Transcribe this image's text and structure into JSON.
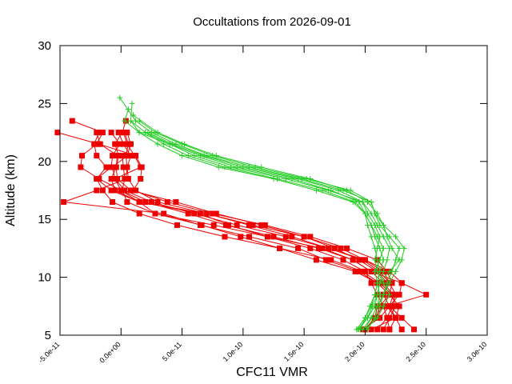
{
  "chart_data": {
    "type": "line",
    "title": "Occultations from 2026-09-01",
    "xlabel": "CFC11 VMR",
    "ylabel": "Altitude (km)",
    "xlim": [
      -5e-11,
      3e-10
    ],
    "ylim": [
      5,
      30
    ],
    "x_ticks": [
      -5e-11,
      0,
      5e-11,
      1e-10,
      1.5e-10,
      2e-10,
      2.5e-10,
      3e-10
    ],
    "x_tick_labels": [
      "-5.0e-11",
      "0.0e+00",
      "5.0e-11",
      "1.0e-10",
      "1.5e-10",
      "2.0e-10",
      "2.5e-10",
      "3.0e-10"
    ],
    "y_ticks": [
      5,
      10,
      15,
      20,
      25,
      30
    ],
    "y_tick_labels": [
      "5",
      "10",
      "15",
      "20",
      "25",
      "30"
    ],
    "grid": false,
    "legend": "none",
    "colors": {
      "red_series": "#ee0000",
      "green_series": "#22cc22"
    },
    "series": [
      {
        "color": "red",
        "marker": "square",
        "x": [
          2e-10,
          2.08e-10,
          2.15e-10,
          2.2e-10,
          2.1e-10,
          1.92e-10,
          1.6e-10,
          1.3e-10,
          9.8e-11,
          6.6e-11,
          2.8e-11,
          5e-12,
          1e-12,
          3e-12,
          2e-12,
          1e-12
        ],
        "y": [
          5.5,
          6.5,
          7.5,
          8.5,
          9.5,
          10.5,
          11.5,
          12.5,
          13.5,
          14.5,
          15.5,
          16.5,
          17.5,
          18.5,
          19.5,
          20.5
        ]
      },
      {
        "color": "red",
        "marker": "square",
        "x": [
          2.1e-10,
          2.18e-10,
          2.22e-10,
          2.25e-10,
          2.2e-10,
          2.12e-10,
          1.98e-10,
          1.7e-10,
          1.4e-10,
          1.05e-10,
          7e-11,
          3e-11,
          1.2e-11,
          6e-12,
          5e-12,
          4e-12,
          6e-12,
          3e-12
        ],
        "y": [
          5.5,
          6.5,
          7.5,
          8.5,
          9.5,
          10.5,
          11.5,
          12.5,
          13.5,
          14.5,
          15.5,
          16.5,
          17.5,
          18.5,
          19.5,
          20.5,
          21.5,
          22.5
        ]
      },
      {
        "color": "red",
        "marker": "square",
        "x": [
          2.3e-10,
          2.25e-10,
          2.18e-10,
          2.5e-10,
          2.3e-10,
          2.2e-10,
          2e-10,
          1.8e-10,
          1.5e-10,
          1.15e-10,
          7.8e-11,
          4.5e-11,
          8e-12,
          -3e-12,
          -4e-12,
          -2e-12,
          -5e-12,
          1e-12,
          4e-12
        ],
        "y": [
          5.5,
          6.5,
          7.5,
          8.5,
          9.5,
          10.5,
          11.5,
          12.5,
          13.5,
          14.5,
          15.5,
          16.5,
          17.5,
          18.5,
          19.5,
          20.5,
          21.5,
          22.5,
          23.5
        ]
      },
      {
        "color": "red",
        "marker": "square",
        "x": [
          1.98e-10,
          2.12e-10,
          2.2e-10,
          2.23e-10,
          2.15e-10,
          2.05e-10,
          1.9e-10,
          1.62e-10,
          1.25e-10,
          8.6e-11,
          5.5e-11,
          2e-11,
          0,
          -1.8e-11,
          -3.3e-11,
          -3.2e-11,
          -2e-11,
          -1.5e-11,
          -4e-11
        ],
        "y": [
          5.5,
          6.5,
          7.5,
          8.5,
          9.5,
          10.5,
          11.5,
          12.5,
          13.5,
          14.5,
          15.5,
          16.5,
          17.5,
          18.5,
          19.5,
          20.5,
          21.5,
          22.5,
          23.5
        ]
      },
      {
        "color": "red",
        "marker": "square",
        "x": [
          2e-10,
          2.1e-10,
          2.12e-10,
          2.2e-10,
          2.22e-10,
          2.18e-10,
          2.1e-10,
          1.85e-10,
          1.55e-10,
          1.18e-10,
          7.5e-11,
          3.8e-11,
          1e-11,
          1.6e-11,
          1.7e-11,
          1.2e-11,
          -1.8e-11,
          -5.2e-11
        ],
        "y": [
          5.5,
          6.5,
          7.5,
          8.5,
          9.5,
          10.5,
          11.5,
          12.5,
          13.5,
          14.5,
          15.5,
          16.5,
          17.5,
          18.5,
          19.5,
          20.5,
          21.5,
          22.5
        ]
      },
      {
        "color": "red",
        "marker": "square",
        "x": [
          2e-10,
          2.08e-10,
          2.1e-10,
          2.15e-10,
          2.2e-10,
          2.15e-10,
          2e-10,
          1.7e-10,
          1.35e-10,
          9.5e-11,
          6e-11,
          2.5e-11,
          3e-12,
          -5e-12,
          -7e-12,
          5e-12,
          8e-12,
          5e-12
        ],
        "y": [
          5.5,
          6.5,
          7.5,
          8.5,
          9.5,
          10.5,
          11.5,
          12.5,
          13.5,
          14.5,
          15.5,
          16.5,
          17.5,
          18.5,
          19.5,
          20.5,
          21.5,
          22.5
        ]
      },
      {
        "color": "red",
        "marker": "square",
        "x": [
          2.15e-10,
          2.2e-10,
          2.25e-10,
          2.22e-10,
          2.12e-10,
          1.98e-10,
          1.72e-10,
          1.3e-10,
          8.5e-11,
          4.6e-11,
          1.5e-11,
          -7e-12,
          -1.5e-11,
          -2e-11,
          -1.2e-11,
          -2e-11,
          -2.2e-11,
          -1.8e-11
        ],
        "y": [
          5.5,
          6.5,
          7.5,
          8.5,
          9.5,
          10.5,
          11.5,
          12.5,
          13.5,
          14.5,
          15.5,
          16.5,
          17.5,
          18.5,
          19.5,
          20.5,
          21.5,
          22.5
        ]
      },
      {
        "color": "red",
        "marker": "square",
        "x": [
          2.2e-10,
          2.25e-10,
          2.28e-10,
          2.2e-10,
          2.1e-10,
          1.95e-10,
          1.68e-10,
          1.45e-10,
          1.05e-10,
          6.5e-11,
          3.5e-11,
          -4.7e-11,
          -2e-11,
          4e-12,
          5e-12,
          8e-12,
          2e-12,
          -2e-12
        ],
        "y": [
          5.5,
          6.5,
          7.5,
          8.5,
          9.5,
          10.5,
          11.5,
          12.5,
          13.5,
          14.5,
          15.5,
          16.5,
          17.5,
          18.5,
          19.5,
          20.5,
          21.5,
          22.5
        ]
      },
      {
        "color": "red",
        "marker": "square",
        "x": [
          2.4e-10,
          2.3e-10,
          2.2e-10,
          2.28e-10,
          2.3e-10,
          2.05e-10,
          1.9e-10,
          1.65e-10,
          1.2e-10,
          7.6e-11,
          2.8e-11,
          1.5e-11,
          0,
          -5e-12,
          1.6e-11,
          1.1e-11,
          5e-12,
          2e-12
        ],
        "y": [
          5.5,
          6.5,
          7.5,
          8.5,
          9.5,
          10.5,
          11.5,
          12.5,
          13.5,
          14.5,
          15.5,
          16.5,
          17.5,
          18.5,
          19.5,
          20.5,
          21.5,
          22.5
        ]
      },
      {
        "color": "red",
        "marker": "square",
        "x": [
          2.2e-10,
          2.18e-10,
          2.15e-10,
          2.1e-10,
          2.05e-10,
          2e-10,
          1.82e-10,
          1.55e-10,
          1.2e-10,
          8.8e-11,
          6.5e-11,
          1.5e-11,
          -8e-12,
          -2e-11,
          -8e-12,
          -7e-12,
          -1e-12,
          -8e-12
        ],
        "y": [
          5.5,
          6.5,
          7.5,
          8.5,
          9.5,
          10.5,
          11.5,
          12.5,
          13.5,
          14.5,
          15.5,
          16.5,
          17.5,
          18.5,
          19.5,
          20.5,
          21.5,
          22.5
        ]
      },
      {
        "color": "red",
        "marker": "square",
        "x": [
          2.05e-10,
          2.25e-10,
          2.2e-10,
          2.15e-10,
          2.18e-10,
          2.1e-10,
          1.95e-10,
          1.75e-10,
          1.5e-10,
          1.08e-10,
          7e-11,
          1.5e-11,
          -5e-12,
          -8e-12,
          -4e-12,
          -3e-12,
          -1.7e-11,
          -2e-11
        ],
        "y": [
          5.5,
          6.5,
          7.5,
          8.5,
          9.5,
          10.5,
          11.5,
          12.5,
          13.5,
          14.5,
          15.5,
          16.5,
          17.5,
          18.5,
          19.5,
          20.5,
          21.5,
          22.5
        ]
      },
      {
        "color": "green",
        "marker": "plus",
        "x": [
          1.93e-10,
          2e-10,
          2.05e-10,
          2.08e-10,
          2.1e-10,
          2.12e-10,
          2.1e-10,
          2.08e-10,
          2.05e-10,
          2.02e-10,
          2e-10,
          1.9e-10,
          1.6e-10,
          1.25e-10,
          8e-11,
          5e-11,
          3e-11,
          1.5e-11,
          8e-12
        ],
        "y": [
          5.5,
          6.5,
          7.5,
          8.5,
          9.5,
          10.5,
          11.5,
          12.5,
          13.5,
          14.5,
          15.5,
          16.5,
          17.5,
          18.5,
          19.5,
          20.5,
          21.5,
          22.5,
          23.5
        ]
      },
      {
        "color": "green",
        "marker": "plus",
        "x": [
          1.95e-10,
          2.02e-10,
          2.08e-10,
          2.1e-10,
          2.12e-10,
          2.15e-10,
          2.18e-10,
          2.2e-10,
          2.15e-10,
          2.1e-10,
          2.05e-10,
          1.98e-10,
          1.7e-10,
          1.35e-10,
          9e-11,
          6e-11,
          4e-11,
          1.5e-11,
          3e-12,
          6e-12
        ],
        "y": [
          5.5,
          6.5,
          7.5,
          8.5,
          9.5,
          10.5,
          11.5,
          12.5,
          13.5,
          14.5,
          15.5,
          16.5,
          17.5,
          18.5,
          19.5,
          20.5,
          21.5,
          22.5,
          23.5,
          24.5
        ]
      },
      {
        "color": "green",
        "marker": "plus",
        "x": [
          2e-10,
          2.05e-10,
          2.1e-10,
          2.15e-10,
          2.2e-10,
          2.25e-10,
          2.3e-10,
          2.32e-10,
          2.25e-10,
          2.15e-10,
          2.08e-10,
          2.05e-10,
          1.82e-10,
          1.48e-10,
          1.05e-10,
          7e-11,
          4.5e-11,
          2.5e-11,
          1.2e-11,
          -1e-12
        ],
        "y": [
          5.5,
          6.5,
          7.5,
          8.5,
          9.5,
          10.5,
          11.5,
          12.5,
          13.5,
          14.5,
          15.5,
          16.5,
          17.5,
          18.5,
          19.5,
          20.5,
          21.5,
          22.5,
          23.5,
          25.5
        ]
      },
      {
        "color": "green",
        "marker": "plus",
        "x": [
          1.98e-10,
          2.05e-10,
          2.1e-10,
          2.12e-10,
          2.1e-10,
          2.08e-10,
          2.12e-10,
          2.15e-10,
          2.1e-10,
          2.05e-10,
          2e-10,
          1.92e-10,
          1.65e-10,
          1.28e-10,
          8.5e-11,
          5.5e-11,
          3.5e-11,
          2e-11,
          8e-12,
          9e-12
        ],
        "y": [
          5.5,
          6.5,
          7.5,
          8.5,
          9.5,
          10.5,
          11.5,
          12.5,
          13.5,
          14.5,
          15.5,
          16.5,
          17.5,
          18.5,
          19.5,
          20.5,
          21.5,
          22.5,
          23.5,
          25.0
        ]
      },
      {
        "color": "green",
        "marker": "plus",
        "x": [
          2.02e-10,
          2.08e-10,
          2.12e-10,
          2.15e-10,
          2.18e-10,
          2.22e-10,
          2.25e-10,
          2.28e-10,
          2.2e-10,
          2.12e-10,
          2.08e-10,
          2.05e-10,
          1.88e-10,
          1.52e-10,
          1.1e-10,
          7.5e-11,
          5e-11,
          2.8e-11,
          1.5e-11
        ],
        "y": [
          5.5,
          6.5,
          7.5,
          8.5,
          9.5,
          10.5,
          11.5,
          12.5,
          13.5,
          14.5,
          15.5,
          16.5,
          17.5,
          18.5,
          19.5,
          20.5,
          21.5,
          22.5,
          23.5
        ]
      },
      {
        "color": "green",
        "marker": "plus",
        "x": [
          1.96e-10,
          2e-10,
          2.04e-10,
          2.08e-10,
          2.1e-10,
          2.12e-10,
          2.15e-10,
          2.12e-10,
          2.08e-10,
          2.05e-10,
          2e-10,
          1.95e-10,
          1.72e-10,
          1.4e-10,
          9.5e-11,
          6.5e-11,
          4e-11,
          2e-11
        ],
        "y": [
          5.5,
          6.5,
          7.5,
          8.5,
          9.5,
          10.5,
          11.5,
          12.5,
          13.5,
          14.5,
          15.5,
          16.5,
          17.5,
          18.5,
          19.5,
          20.5,
          21.5,
          22.5
        ]
      },
      {
        "color": "green",
        "marker": "plus",
        "x": [
          2e-10,
          2.1e-10,
          2.15e-10,
          2.2e-10,
          2.15e-10,
          2.1e-10,
          2.08e-10,
          2.1e-10,
          2.12e-10,
          2.08e-10,
          2.02e-10,
          1.98e-10,
          1.78e-10,
          1.45e-10,
          1e-10,
          6.8e-11,
          4.2e-11,
          2.2e-11
        ],
        "y": [
          5.5,
          6.5,
          7.5,
          8.5,
          9.5,
          10.5,
          11.5,
          12.5,
          13.5,
          14.5,
          15.5,
          16.5,
          17.5,
          18.5,
          19.5,
          20.5,
          21.5,
          22.5
        ]
      },
      {
        "color": "green",
        "marker": "plus",
        "x": [
          1.94e-10,
          2.02e-10,
          2.06e-10,
          2.1e-10,
          2.12e-10,
          2.2e-10,
          2.28e-10,
          2.22e-10,
          2.18e-10,
          2.15e-10,
          2.1e-10,
          2.02e-10,
          1.85e-10,
          1.55e-10,
          1.15e-10,
          7.8e-11,
          5.2e-11,
          3e-11,
          1e-11
        ],
        "y": [
          5.5,
          6.5,
          7.5,
          8.5,
          9.5,
          10.5,
          11.5,
          12.5,
          13.5,
          14.5,
          15.5,
          16.5,
          17.5,
          18.5,
          19.5,
          20.5,
          21.5,
          22.5,
          24.0
        ]
      }
    ]
  }
}
